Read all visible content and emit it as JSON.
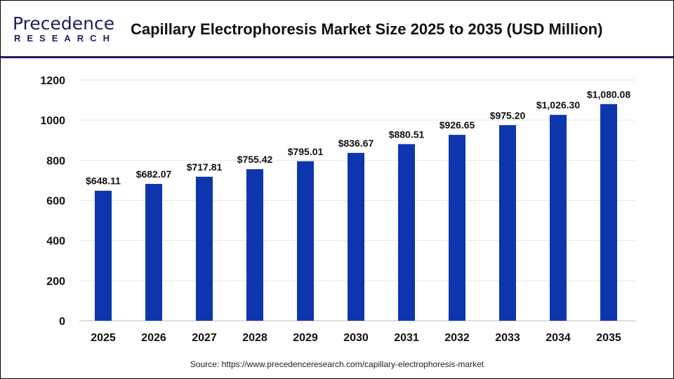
{
  "logo": {
    "line1": "Precedence",
    "line2": "RESEARCH"
  },
  "source": "Source: https://www.precedenceresearch.com/capillary-electrophoresis-market",
  "chart_data": {
    "type": "bar",
    "title": "Capillary Electrophoresis Market Size 2025 to 2035 (USD Million)",
    "categories": [
      "2025",
      "2026",
      "2027",
      "2028",
      "2029",
      "2030",
      "2031",
      "2032",
      "2033",
      "2034",
      "2035"
    ],
    "values": [
      648.11,
      682.07,
      717.81,
      755.42,
      795.01,
      836.67,
      880.51,
      926.65,
      975.2,
      1026.3,
      1080.08
    ],
    "data_labels": [
      "$648.11",
      "$682.07",
      "$717.81",
      "$755.42",
      "$795.01",
      "$836.67",
      "$880.51",
      "$926.65",
      "$975.20",
      "$1,026.30",
      "$1,080.08"
    ],
    "yticks": [
      0,
      200,
      400,
      600,
      800,
      1000,
      1200
    ],
    "ylim": [
      0,
      1200
    ],
    "grid": true,
    "bar_color": "#0d36ae",
    "xlabel": "",
    "ylabel": ""
  }
}
